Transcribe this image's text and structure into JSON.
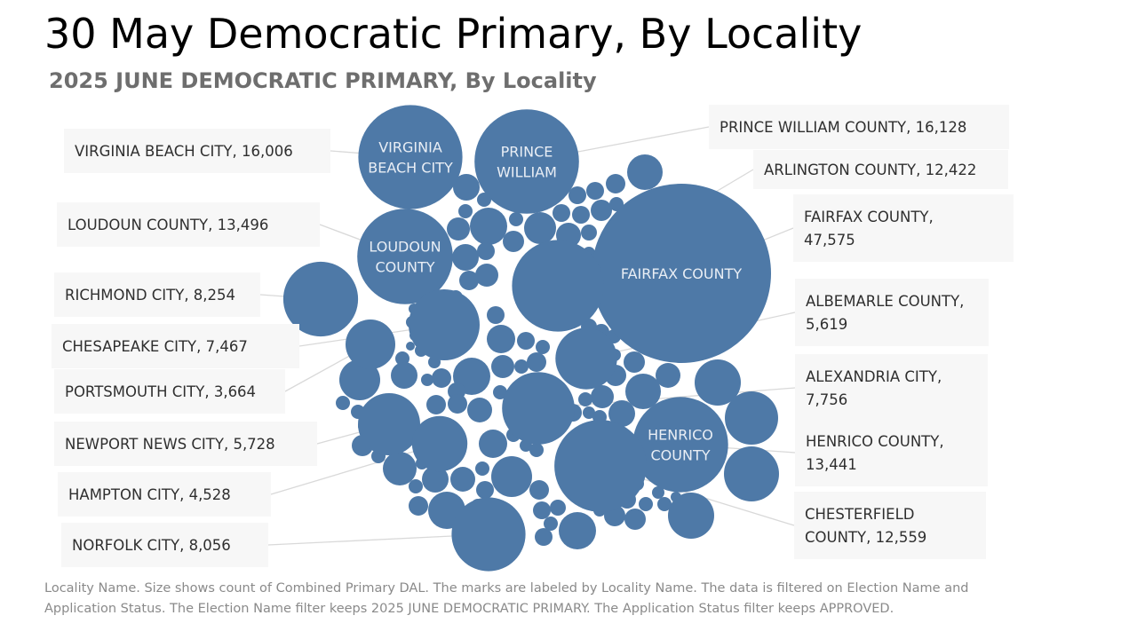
{
  "slide": {
    "title": "30 May Democratic Primary, By Locality",
    "subtitle": "2025 JUNE DEMOCRATIC PRIMARY, By Locality",
    "footnote": "Locality Name.  Size shows count of Combined Primary DAL.  The marks are labeled by Locality Name. The data is filtered on Election Name and Application Status. The Election Name filter keeps 2025 JUNE DEMOCRATIC PRIMARY. The Application Status filter keeps APPROVED."
  },
  "colors": {
    "bubble": "#4e79a7",
    "callout_bg": "#f7f7f7",
    "leader_line": "#d9d9d9"
  },
  "chart_data": {
    "type": "packed-bubble",
    "size_measure": "count of Combined Primary DAL",
    "label_field": "Locality Name",
    "series": [
      {
        "name": "FAIRFAX COUNTY",
        "value": 47575,
        "callout": [
          "FAIRFAX COUNTY,",
          "47,575"
        ],
        "bubble_label": [
          "FAIRFAX COUNTY"
        ]
      },
      {
        "name": "PRINCE WILLIAM COUNTY",
        "value": 16128,
        "callout": [
          "PRINCE WILLIAM COUNTY, 16,128"
        ],
        "bubble_label": [
          "PRINCE",
          "WILLIAM"
        ]
      },
      {
        "name": "VIRGINIA BEACH CITY",
        "value": 16006,
        "callout": [
          "VIRGINIA BEACH CITY, 16,006"
        ],
        "bubble_label": [
          "VIRGINIA",
          "BEACH CITY"
        ]
      },
      {
        "name": "LOUDOUN COUNTY",
        "value": 13496,
        "callout": [
          "LOUDOUN COUNTY, 13,496"
        ],
        "bubble_label": [
          "LOUDOUN",
          "COUNTY"
        ]
      },
      {
        "name": "HENRICO COUNTY",
        "value": 13441,
        "callout": [
          "HENRICO COUNTY,",
          "13,441"
        ],
        "bubble_label": [
          "HENRICO",
          "COUNTY"
        ]
      },
      {
        "name": "CHESTERFIELD COUNTY",
        "value": 12559,
        "callout": [
          "CHESTERFIELD",
          "COUNTY, 12,559"
        ],
        "bubble_label": []
      },
      {
        "name": "ARLINGTON COUNTY",
        "value": 12422,
        "callout": [
          "ARLINGTON COUNTY, 12,422"
        ],
        "bubble_label": []
      },
      {
        "name": "RICHMOND CITY",
        "value": 8254,
        "callout": [
          "RICHMOND CITY, 8,254"
        ],
        "bubble_label": []
      },
      {
        "name": "NORFOLK CITY",
        "value": 8056,
        "callout": [
          "NORFOLK CITY, 8,056"
        ],
        "bubble_label": []
      },
      {
        "name": "ALEXANDRIA CITY",
        "value": 7756,
        "callout": [
          "ALEXANDRIA CITY,",
          "7,756"
        ],
        "bubble_label": []
      },
      {
        "name": "CHESAPEAKE CITY",
        "value": 7467,
        "callout": [
          "CHESAPEAKE CITY, 7,467"
        ],
        "bubble_label": []
      },
      {
        "name": "NEWPORT NEWS CITY",
        "value": 5728,
        "callout": [
          "NEWPORT NEWS CITY, 5,728"
        ],
        "bubble_label": []
      },
      {
        "name": "ALBEMARLE COUNTY",
        "value": 5619,
        "callout": [
          "ALBEMARLE COUNTY,",
          "5,619"
        ],
        "bubble_label": []
      },
      {
        "name": "HAMPTON CITY",
        "value": 4528,
        "callout": [
          "HAMPTON CITY, 4,528"
        ],
        "bubble_label": []
      },
      {
        "name": "PORTSMOUTH CITY",
        "value": 3664,
        "callout": [
          "PORTSMOUTH CITY, 3,664"
        ],
        "bubble_label": []
      }
    ]
  }
}
